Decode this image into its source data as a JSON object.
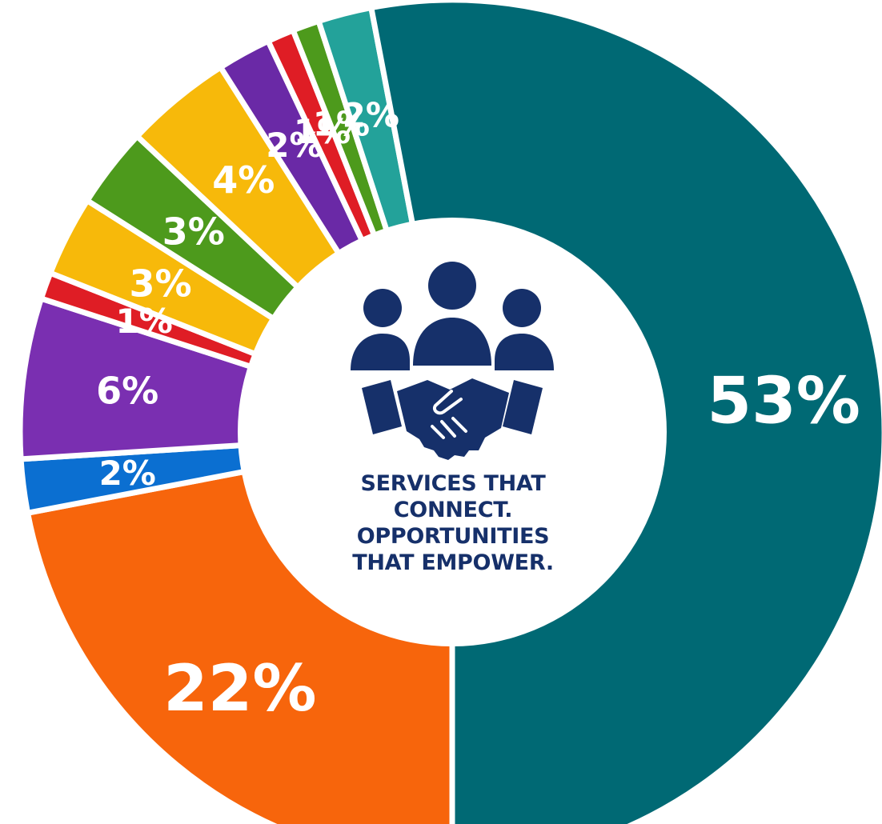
{
  "chart_data": {
    "type": "pie",
    "title": "",
    "subtitle": "",
    "style": "donut",
    "start": "bottom-center, proceeding clockwise",
    "slices": [
      {
        "label": "22%",
        "value": 22,
        "color": "#f7650c"
      },
      {
        "label": "2%",
        "value": 2,
        "color": "#0b6fd1"
      },
      {
        "label": "6%",
        "value": 6,
        "color": "#7a2fb1"
      },
      {
        "label": "1%",
        "value": 1,
        "color": "#df1d25"
      },
      {
        "label": "3%",
        "value": 3,
        "color": "#f7b90a"
      },
      {
        "label": "3%",
        "value": 3,
        "color": "#4d9a1c"
      },
      {
        "label": "4%",
        "value": 4,
        "color": "#f7b90a"
      },
      {
        "label": "2%",
        "value": 2,
        "color": "#6a29a6"
      },
      {
        "label": "1%",
        "value": 1,
        "color": "#df1d25"
      },
      {
        "label": "1%",
        "value": 1,
        "color": "#4d9a1c"
      },
      {
        "label": "2%",
        "value": 2,
        "color": "#23a29a"
      },
      {
        "label": "53%",
        "value": 53,
        "color": "#006974"
      }
    ],
    "legend": "none"
  },
  "center": {
    "icon": "people-handshake-icon",
    "icon_color": "#16306a",
    "lines": [
      "SERVICES THAT",
      "CONNECT.",
      "OPPORTUNITIES",
      "THAT EMPOWER."
    ]
  }
}
